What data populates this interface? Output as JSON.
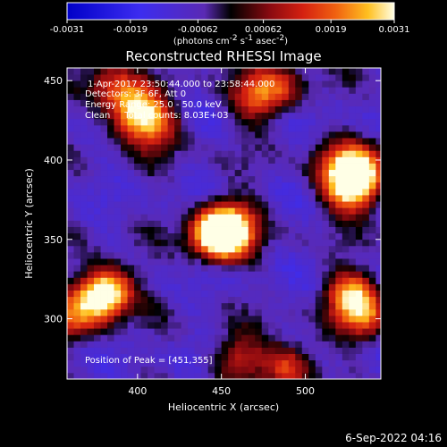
{
  "chart_data": {
    "type": "heatmap",
    "title": "Reconstructed RHESSI Image",
    "xlabel": "Heliocentric X (arcsec)",
    "ylabel": "Heliocentric Y (arcsec)",
    "xlim": [
      358,
      545
    ],
    "ylim": [
      262,
      458
    ],
    "x_ticks": [
      "400",
      "450",
      "500"
    ],
    "x_tick_values": [
      400,
      450,
      500
    ],
    "y_ticks": [
      "300",
      "350",
      "400",
      "450"
    ],
    "y_tick_values": [
      300,
      350,
      400,
      450
    ],
    "colorbar": {
      "min": -0.0031,
      "max": 0.0031,
      "tick_labels": [
        "-0.0031",
        "-0.0019",
        "-0.00062",
        "0.00062",
        "0.0019",
        "0.0031"
      ],
      "tick_values": [
        -0.0031,
        -0.0019,
        -0.00062,
        0.00062,
        0.0019,
        0.0031
      ],
      "unit_label": "(photons cm",
      "unit_exp1": "-2",
      "unit_mid": " s",
      "unit_exp2": "-1",
      "unit_mid2": " asec",
      "unit_exp3": "-2",
      "unit_end": ")"
    },
    "annotations": {
      "line1": "1-Apr-2017 23:50:44.000 to 23:58:44.000",
      "line2": "Detectors: 3F 6F, Att 0",
      "line3": "Energy Range: 25.0 - 50.0 keV",
      "line4": "Clean     Total counts: 8.03E+03",
      "peak": "Position of Peak = [451,355]"
    },
    "peak_position": [
      451,
      355
    ],
    "sources": [
      {
        "x": 451,
        "y": 355,
        "strength": 1.0
      },
      {
        "x": 446,
        "y": 352,
        "strength": 0.5
      },
      {
        "x": 458,
        "y": 360,
        "strength": 0.35
      },
      {
        "x": 382,
        "y": 318,
        "strength": 0.85
      },
      {
        "x": 375,
        "y": 312,
        "strength": 0.45
      },
      {
        "x": 400,
        "y": 430,
        "strength": 0.85
      },
      {
        "x": 385,
        "y": 445,
        "strength": 0.5
      },
      {
        "x": 412,
        "y": 420,
        "strength": 0.4
      },
      {
        "x": 528,
        "y": 382,
        "strength": 0.85
      },
      {
        "x": 520,
        "y": 395,
        "strength": 0.5
      },
      {
        "x": 535,
        "y": 395,
        "strength": 0.55
      },
      {
        "x": 528,
        "y": 315,
        "strength": 0.75
      },
      {
        "x": 535,
        "y": 300,
        "strength": 0.45
      },
      {
        "x": 470,
        "y": 440,
        "strength": 0.5
      },
      {
        "x": 485,
        "y": 445,
        "strength": 0.4
      },
      {
        "x": 460,
        "y": 275,
        "strength": 0.45
      },
      {
        "x": 490,
        "y": 270,
        "strength": 0.6
      },
      {
        "x": 360,
        "y": 300,
        "strength": 0.4
      }
    ]
  },
  "footer": {
    "date": "6-Sep-2022 04:16"
  }
}
